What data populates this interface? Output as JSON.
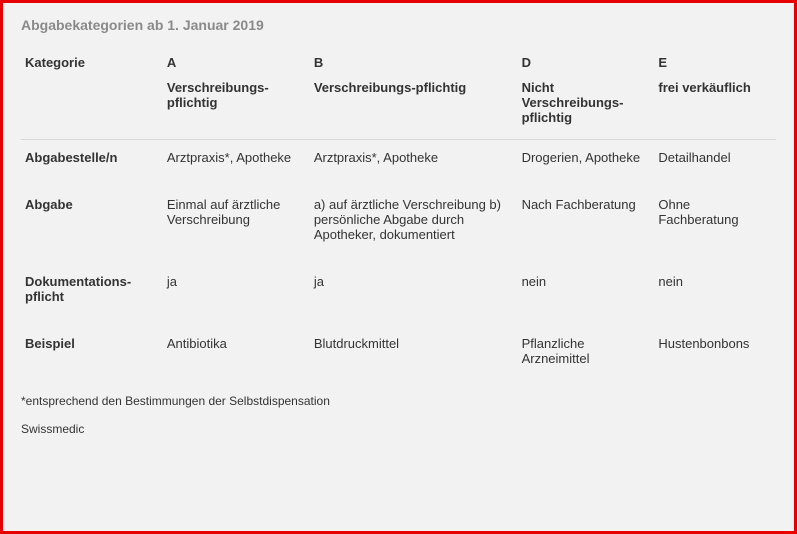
{
  "colors": {
    "border": "#e60000",
    "panel_bg": "#f2f2f2",
    "title_text": "#8a8a8a",
    "body_text": "#333333",
    "header_rule": "#d9d9d9"
  },
  "title": "Abgabekategorien ab 1. Januar 2019",
  "header": {
    "row_label": "Kategorie",
    "cols": [
      {
        "letter": "A",
        "desc": "Verschreibungs-pflichtig"
      },
      {
        "letter": "B",
        "desc": "Verschreibungs-pflichtig"
      },
      {
        "letter": "D",
        "desc": "Nicht Verschreibungs-pflichtig"
      },
      {
        "letter": "E",
        "desc": "frei verkäuflich"
      }
    ]
  },
  "rows": [
    {
      "label": "Abgabestelle/n",
      "cells": [
        "Arztpraxis*, Apotheke",
        "Arztpraxis*, Apotheke",
        "Drogerien, Apotheke",
        "Detailhandel"
      ]
    },
    {
      "label": "Abgabe",
      "cells": [
        "Einmal auf ärztliche Verschreibung",
        "a) auf ärztliche Verschreibung b) persönliche Abgabe durch Apotheker, dokumentiert",
        "Nach Fachberatung",
        "Ohne Fachberatung"
      ]
    },
    {
      "label": "Dokumentations-pflicht",
      "cells": [
        "ja",
        "ja",
        "nein",
        "nein"
      ]
    },
    {
      "label": "Beispiel",
      "cells": [
        "Antibiotika",
        "Blutdruckmittel",
        "Pflanzliche Arzneimittel",
        "Hustenbonbons"
      ]
    }
  ],
  "footnote": "*entsprechend den Bestimmungen der Selbstdispensation",
  "source": "Swissmedic"
}
